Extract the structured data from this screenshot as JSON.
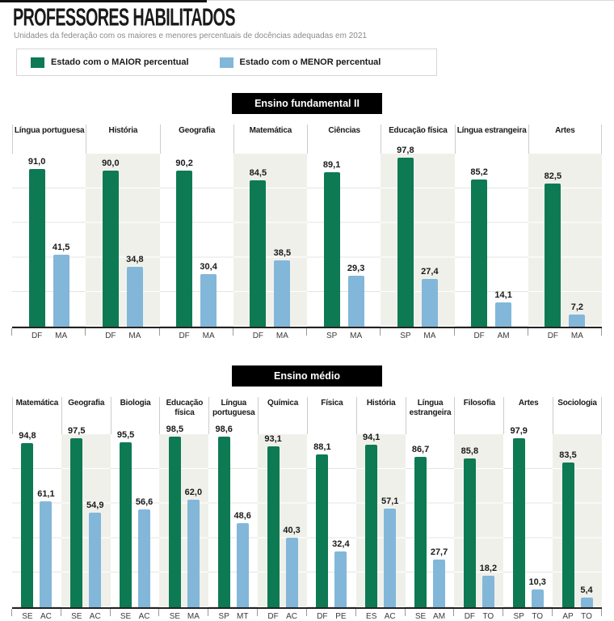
{
  "header": {
    "title": "PROFESSORES HABILITADOS",
    "subtitle": "Unidades da federação com os maiores e menores percentuais de docências adequadas em 2021"
  },
  "legend": {
    "maior_label": "Estado com o MAIOR percentual",
    "menor_label": "Estado com o MENOR percentual"
  },
  "colors": {
    "maior_green": "#0d7a54",
    "menor_blue": "#82b7d9",
    "column_alt_bg": "#f0f0eb",
    "gridline": "#e4e4e0",
    "badge_bg": "#000000"
  },
  "chart_data": [
    {
      "type": "bar",
      "title": "Ensino fundamental II",
      "ylim": [
        0,
        100
      ],
      "grid": true,
      "legend_position": "top",
      "series_names": [
        "Estado com o MAIOR percentual",
        "Estado com o MENOR percentual"
      ],
      "columns": [
        {
          "subject": "Língua portuguesa",
          "max_value": 91.0,
          "max_label": "91,0",
          "max_state": "DF",
          "min_value": 41.5,
          "min_label": "41,5",
          "min_state": "MA"
        },
        {
          "subject": "História",
          "max_value": 90.0,
          "max_label": "90,0",
          "max_state": "DF",
          "min_value": 34.8,
          "min_label": "34,8",
          "min_state": "MA"
        },
        {
          "subject": "Geografia",
          "max_value": 90.2,
          "max_label": "90,2",
          "max_state": "DF",
          "min_value": 30.4,
          "min_label": "30,4",
          "min_state": "MA"
        },
        {
          "subject": "Matemática",
          "max_value": 84.5,
          "max_label": "84,5",
          "max_state": "DF",
          "min_value": 38.5,
          "min_label": "38,5",
          "min_state": "MA"
        },
        {
          "subject": "Ciências",
          "max_value": 89.1,
          "max_label": "89,1",
          "max_state": "SP",
          "min_value": 29.3,
          "min_label": "29,3",
          "min_state": "MA"
        },
        {
          "subject": "Educação física",
          "max_value": 97.8,
          "max_label": "97,8",
          "max_state": "SP",
          "min_value": 27.4,
          "min_label": "27,4",
          "min_state": "MA"
        },
        {
          "subject": "Língua estrangeira",
          "max_value": 85.2,
          "max_label": "85,2",
          "max_state": "DF",
          "min_value": 14.1,
          "min_label": "14,1",
          "min_state": "AM"
        },
        {
          "subject": "Artes",
          "max_value": 82.5,
          "max_label": "82,5",
          "max_state": "DF",
          "min_value": 7.2,
          "min_label": "7,2",
          "min_state": "MA"
        }
      ]
    },
    {
      "type": "bar",
      "title": "Ensino médio",
      "ylim": [
        0,
        100
      ],
      "grid": true,
      "legend_position": "top",
      "series_names": [
        "Estado com o MAIOR percentual",
        "Estado com o MENOR percentual"
      ],
      "columns": [
        {
          "subject": "Matemática",
          "max_value": 94.8,
          "max_label": "94,8",
          "max_state": "SE",
          "min_value": 61.1,
          "min_label": "61,1",
          "min_state": "AC"
        },
        {
          "subject": "Geografia",
          "max_value": 97.5,
          "max_label": "97,5",
          "max_state": "SE",
          "min_value": 54.9,
          "min_label": "54,9",
          "min_state": "AC"
        },
        {
          "subject": "Biologia",
          "max_value": 95.5,
          "max_label": "95,5",
          "max_state": "SE",
          "min_value": 56.6,
          "min_label": "56,6",
          "min_state": "AC"
        },
        {
          "subject": "Educação física",
          "max_value": 98.5,
          "max_label": "98,5",
          "max_state": "SE",
          "min_value": 62.0,
          "min_label": "62,0",
          "min_state": "MA"
        },
        {
          "subject": "Língua portuguesa",
          "max_value": 98.6,
          "max_label": "98,6",
          "max_state": "SP",
          "min_value": 48.6,
          "min_label": "48,6",
          "min_state": "MT"
        },
        {
          "subject": "Química",
          "max_value": 93.1,
          "max_label": "93,1",
          "max_state": "DF",
          "min_value": 40.3,
          "min_label": "40,3",
          "min_state": "AC"
        },
        {
          "subject": "Física",
          "max_value": 88.1,
          "max_label": "88,1",
          "max_state": "DF",
          "min_value": 32.4,
          "min_label": "32,4",
          "min_state": "PE"
        },
        {
          "subject": "História",
          "max_value": 94.1,
          "max_label": "94,1",
          "max_state": "ES",
          "min_value": 57.1,
          "min_label": "57,1",
          "min_state": "AC"
        },
        {
          "subject": "Língua estrangeira",
          "max_value": 86.7,
          "max_label": "86,7",
          "max_state": "SE",
          "min_value": 27.7,
          "min_label": "27,7",
          "min_state": "AM"
        },
        {
          "subject": "Filosofia",
          "max_value": 85.8,
          "max_label": "85,8",
          "max_state": "DF",
          "min_value": 18.2,
          "min_label": "18,2",
          "min_state": "TO"
        },
        {
          "subject": "Artes",
          "max_value": 97.9,
          "max_label": "97,9",
          "max_state": "SP",
          "min_value": 10.3,
          "min_label": "10,3",
          "min_state": "TO"
        },
        {
          "subject": "Sociologia",
          "max_value": 83.5,
          "max_label": "83,5",
          "max_state": "AP",
          "min_value": 5.4,
          "min_label": "5,4",
          "min_state": "TO"
        }
      ]
    }
  ]
}
